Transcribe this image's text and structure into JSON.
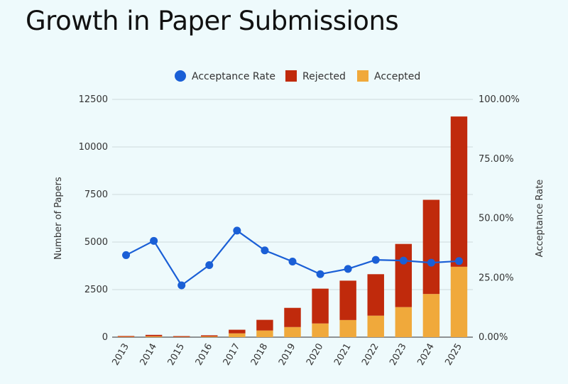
{
  "chart_data": {
    "type": "bar",
    "title": "Growth in Paper Submissions",
    "stacked": true,
    "categories": [
      "2013",
      "2014",
      "2015",
      "2016",
      "2017",
      "2018",
      "2019",
      "2020",
      "2021",
      "2022",
      "2023",
      "2024",
      "2025"
    ],
    "series": [
      {
        "name": "Accepted",
        "kind": "bar",
        "axis": "left",
        "color": "#f0a93b",
        "values": [
          20,
          45,
          15,
          35,
          200,
          350,
          530,
          720,
          900,
          1130,
          1580,
          2270,
          3700
        ]
      },
      {
        "name": "Rejected",
        "kind": "bar",
        "axis": "left",
        "color": "#c02a0c",
        "values": [
          40,
          75,
          40,
          60,
          190,
          560,
          1010,
          1830,
          2070,
          2180,
          3320,
          4950,
          7900
        ]
      },
      {
        "name": "Acceptance Rate",
        "kind": "line",
        "axis": "right",
        "color": "#1a5fd6",
        "values": [
          34.5,
          40.5,
          21.8,
          30.3,
          44.8,
          36.5,
          31.8,
          26.5,
          28.7,
          32.5,
          32.2,
          31.3,
          32.0
        ]
      }
    ],
    "ylabel": "Number of Papers",
    "y2label": "Acceptance Rate",
    "ylim": [
      0,
      12500
    ],
    "y2lim": [
      0,
      100
    ],
    "yticks": [
      "0",
      "2500",
      "5000",
      "7500",
      "10000",
      "12500"
    ],
    "y2ticks": [
      "0.00%",
      "25.00%",
      "50.00%",
      "75.00%",
      "100.00%"
    ],
    "legend": [
      "Acceptance Rate",
      "Rejected",
      "Accepted"
    ],
    "legend_position": "top",
    "grid": true
  }
}
